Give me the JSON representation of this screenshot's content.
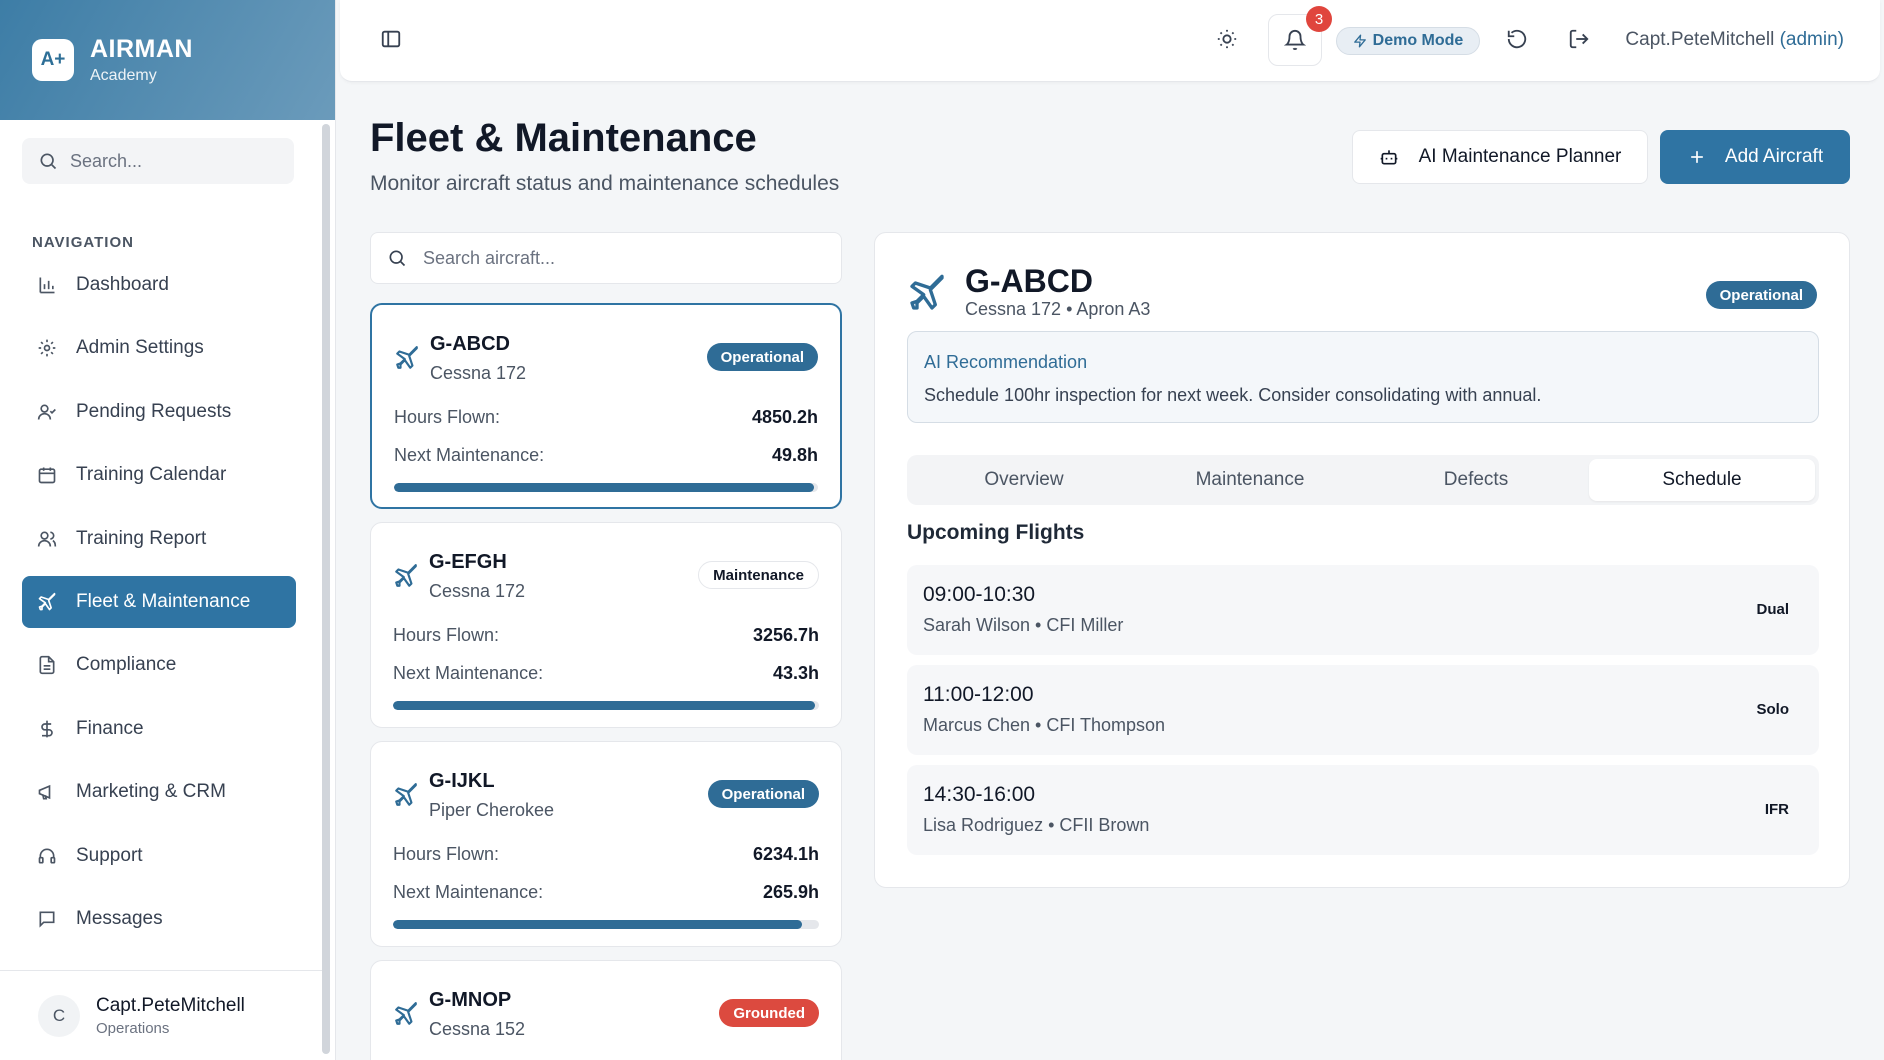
{
  "brand": {
    "logo": "A+",
    "name": "AIRMAN",
    "subtitle": "Academy"
  },
  "sidebar": {
    "search_placeholder": "Search...",
    "nav_title": "NAVIGATION",
    "items": [
      {
        "label": "Dashboard",
        "icon": "bar-chart-icon"
      },
      {
        "label": "Admin Settings",
        "icon": "gear-icon"
      },
      {
        "label": "Pending Requests",
        "icon": "user-check-icon"
      },
      {
        "label": "Training Calendar",
        "icon": "calendar-icon"
      },
      {
        "label": "Training Report",
        "icon": "users-icon"
      },
      {
        "label": "Fleet & Maintenance",
        "icon": "plane-icon",
        "active": true
      },
      {
        "label": "Compliance",
        "icon": "document-icon"
      },
      {
        "label": "Finance",
        "icon": "dollar-icon"
      },
      {
        "label": "Marketing & CRM",
        "icon": "megaphone-icon"
      },
      {
        "label": "Support",
        "icon": "headset-icon"
      },
      {
        "label": "Messages",
        "icon": "message-icon"
      }
    ],
    "footer": {
      "avatar_initial": "C",
      "name": "Capt.PeteMitchell",
      "role": "Operations"
    }
  },
  "topbar": {
    "notification_count": "3",
    "demo_label": "Demo Mode",
    "user_name": "Capt.PeteMitchell",
    "user_role": "(admin)"
  },
  "page": {
    "title": "Fleet & Maintenance",
    "subtitle": "Monitor aircraft status and maintenance schedules",
    "ai_button": "AI Maintenance Planner",
    "add_button": "Add Aircraft"
  },
  "fleet": {
    "search_placeholder": "Search aircraft...",
    "hours_label": "Hours Flown:",
    "next_label": "Next Maintenance:",
    "aircraft": [
      {
        "reg": "G-ABCD",
        "model": "Cessna 172",
        "status": "Operational",
        "hours": "4850.2h",
        "next": "49.8h",
        "progress_pct": 99
      },
      {
        "reg": "G-EFGH",
        "model": "Cessna 172",
        "status": "Maintenance",
        "hours": "3256.7h",
        "next": "43.3h",
        "progress_pct": 99
      },
      {
        "reg": "G-IJKL",
        "model": "Piper Cherokee",
        "status": "Operational",
        "hours": "6234.1h",
        "next": "265.9h",
        "progress_pct": 96
      },
      {
        "reg": "G-MNOP",
        "model": "Cessna 152",
        "status": "Grounded"
      }
    ]
  },
  "detail": {
    "reg": "G-ABCD",
    "subtitle": "Cessna 172 • Apron A3",
    "status": "Operational",
    "ai_title": "AI Recommendation",
    "ai_text": "Schedule 100hr inspection for next week. Consider consolidating with annual.",
    "tabs": [
      "Overview",
      "Maintenance",
      "Defects",
      "Schedule"
    ],
    "active_tab": "Schedule",
    "upcoming_title": "Upcoming Flights",
    "flights": [
      {
        "time": "09:00-10:30",
        "who": "Sarah Wilson • CFI Miller",
        "type": "Dual"
      },
      {
        "time": "11:00-12:00",
        "who": "Marcus Chen • CFI Thompson",
        "type": "Solo"
      },
      {
        "time": "14:30-16:00",
        "who": "Lisa Rodriguez • CFII Brown",
        "type": "IFR"
      }
    ]
  },
  "colors": {
    "accent": "#2f74a3",
    "operational": "#2f6c96",
    "grounded": "#dc4a3f",
    "badge": "#e0453d"
  }
}
